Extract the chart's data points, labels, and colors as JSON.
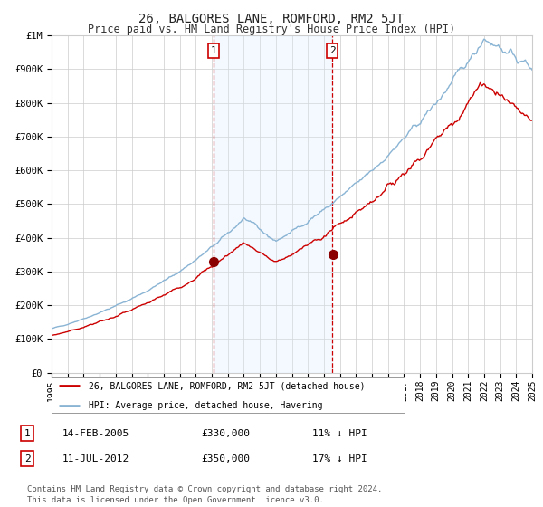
{
  "title": "26, BALGORES LANE, ROMFORD, RM2 5JT",
  "subtitle": "Price paid vs. HM Land Registry's House Price Index (HPI)",
  "x_start_year": 1995,
  "x_end_year": 2025,
  "y_min": 0,
  "y_max": 1000000,
  "y_ticks": [
    0,
    100000,
    200000,
    300000,
    400000,
    500000,
    600000,
    700000,
    800000,
    900000,
    1000000
  ],
  "y_tick_labels": [
    "£0",
    "£100K",
    "£200K",
    "£300K",
    "£400K",
    "£500K",
    "£600K",
    "£700K",
    "£800K",
    "£900K",
    "£1M"
  ],
  "sale1_date_num": 2005.12,
  "sale1_price": 330000,
  "sale1_label": "14-FEB-2005",
  "sale1_hpi_diff": "11% ↓ HPI",
  "sale2_date_num": 2012.53,
  "sale2_price": 350000,
  "sale2_label": "11-JUL-2012",
  "sale2_hpi_diff": "17% ↓ HPI",
  "line_color_hpi": "#8ab4d4",
  "line_color_price": "#cc0000",
  "marker_color": "#8b0000",
  "dashed_line_color": "#cc0000",
  "shading_color": "#ddeeff",
  "legend_label_price": "26, BALGORES LANE, ROMFORD, RM2 5JT (detached house)",
  "legend_label_hpi": "HPI: Average price, detached house, Havering",
  "footer": "Contains HM Land Registry data © Crown copyright and database right 2024.\nThis data is licensed under the Open Government Licence v3.0.",
  "background_color": "#ffffff",
  "grid_color": "#cccccc",
  "title_fontsize": 10,
  "subtitle_fontsize": 8.5,
  "tick_fontsize": 7.5,
  "legend_fontsize": 7.5
}
